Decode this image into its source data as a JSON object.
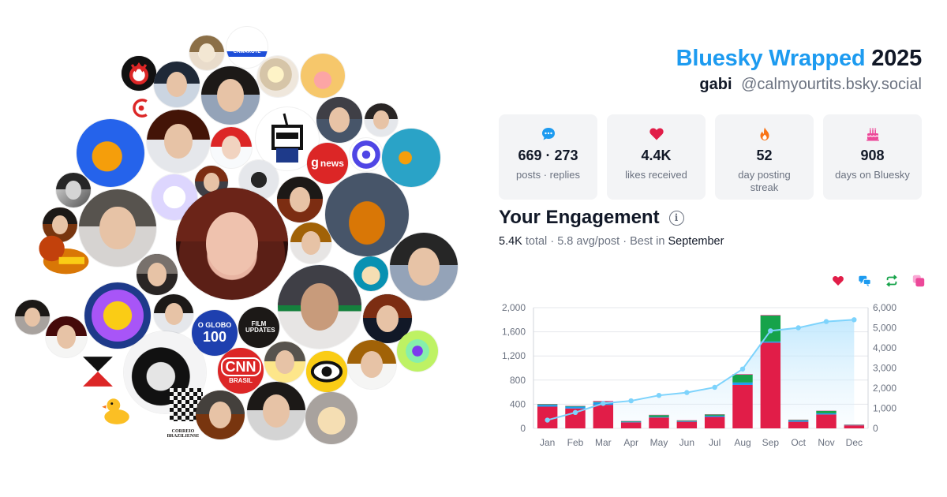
{
  "header": {
    "brand": "Bluesky Wrapped",
    "year": "2025",
    "display_name": "gabi",
    "handle": "@calmyourtits.bsky.social"
  },
  "stats": [
    {
      "icon": "speech-bubble-icon",
      "value": "669 · 273",
      "label": "posts · replies",
      "color": "#1d9bf0"
    },
    {
      "icon": "heart-icon",
      "value": "4.4K",
      "label": "likes received",
      "color": "#e11d48"
    },
    {
      "icon": "flame-icon",
      "value": "52",
      "label": "day posting streak",
      "color": "#f97316"
    },
    {
      "icon": "cake-icon",
      "value": "908",
      "label": "days on Bluesky",
      "color": "#ec4899"
    }
  ],
  "engagement": {
    "title": "Your Engagement",
    "total": "5.4K",
    "total_suffix": "total",
    "avg": "5.8 avg/post",
    "best_prefix": "Best in",
    "best_month": "September"
  },
  "legend": [
    {
      "icon": "heart-icon",
      "color": "#e11d48"
    },
    {
      "icon": "replies-icon",
      "color": "#1d9bf0"
    },
    {
      "icon": "repost-icon",
      "color": "#16a34a"
    },
    {
      "icon": "quote-icon",
      "color": "#ec4899"
    }
  ],
  "chart_data": {
    "type": "bar",
    "categories": [
      "Jan",
      "Feb",
      "Mar",
      "Apr",
      "May",
      "Jun",
      "Jul",
      "Aug",
      "Sep",
      "Oct",
      "Nov",
      "Dec"
    ],
    "series": [
      {
        "values": [
          360,
          330,
          390,
          100,
          180,
          110,
          190,
          720,
          1420,
          110,
          230,
          50
        ],
        "color": "#e11d48"
      },
      {
        "values": [
          30,
          30,
          40,
          10,
          10,
          10,
          20,
          40,
          20,
          20,
          20,
          5
        ],
        "color": "#1d9bf0"
      },
      {
        "values": [
          10,
          10,
          10,
          10,
          30,
          10,
          20,
          130,
          430,
          10,
          40,
          5
        ],
        "color": "#16a34a"
      },
      {
        "values": [
          5,
          5,
          15,
          5,
          5,
          5,
          5,
          10,
          10,
          5,
          5,
          5
        ],
        "color": "#ec4899"
      }
    ],
    "cumulative": {
      "values": [
        410,
        790,
        1240,
        1370,
        1640,
        1780,
        2040,
        2950,
        4850,
        5000,
        5310,
        5400
      ],
      "color": "#7dd3fc"
    },
    "ylim": [
      0,
      2000
    ],
    "yticks": [
      "0",
      "400",
      "800",
      "1,200",
      "1,600",
      "2,000"
    ],
    "ytick_values": [
      0,
      400,
      800,
      1200,
      1600,
      2000
    ],
    "y2lim": [
      0,
      6000
    ],
    "y2ticks": [
      "0",
      "1,000",
      "2,000",
      "3,000",
      "4,000",
      "5,000",
      "6,000"
    ],
    "y2tick_values": [
      0,
      1000,
      2000,
      3000,
      4000,
      5000,
      6000
    ],
    "grid": true,
    "stacked": true
  },
  "avatar_cloud": {
    "labels": {
      "globonews": "news",
      "oglobo_top": "O GLOBO",
      "oglobo_num": "100",
      "cnn": "CNN",
      "cnn_sub": "BRASIL",
      "filmupdates": "FILM UPDATES",
      "correio": "CORREIO BRAZILIENSE",
      "camarote": "CAMAROTE"
    }
  }
}
